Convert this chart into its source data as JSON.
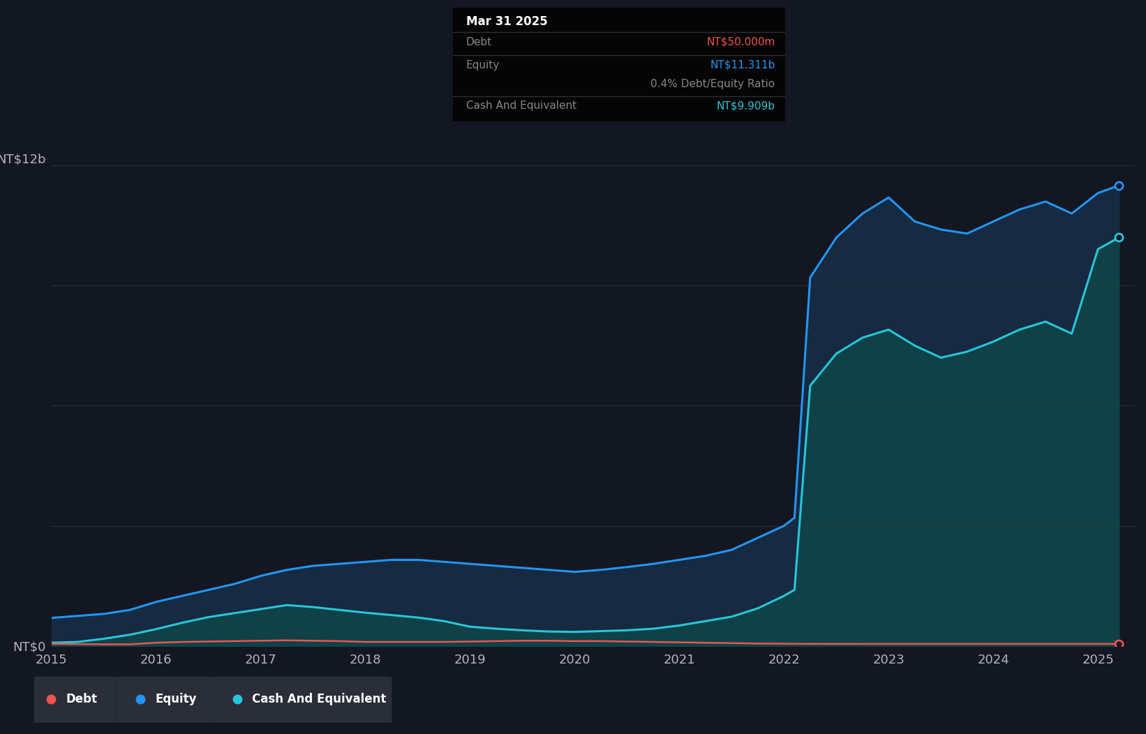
{
  "bg_color": "#131722",
  "plot_bg_color": "#131722",
  "legend_bg_color": "#2a2e39",
  "tooltip_bg_color": "#050505",
  "grid_color": "#2a2e39",
  "equity_color": "#2196F3",
  "debt_color": "#ef5350",
  "cash_color": "#26c6da",
  "equity_fill_color": "#1a3a5c",
  "cash_fill_color": "#0d4a4a",
  "ylim": [
    0,
    13200000000
  ],
  "ytick_labels": [
    "NT$0",
    "NT$12b"
  ],
  "xlabel_color": "#b2b5be",
  "ylabel_color": "#b2b5be",
  "tooltip_title": "Mar 31 2025",
  "tooltip_debt_label": "Debt",
  "tooltip_debt_value": "NT$50.000m",
  "tooltip_equity_label": "Equity",
  "tooltip_equity_value": "NT$11.311b",
  "tooltip_ratio": "0.4% Debt/Equity Ratio",
  "tooltip_cash_label": "Cash And Equivalent",
  "tooltip_cash_value": "NT$9.909b",
  "years": [
    2015.0,
    2015.25,
    2015.5,
    2015.75,
    2016.0,
    2016.25,
    2016.5,
    2016.75,
    2017.0,
    2017.25,
    2017.5,
    2017.75,
    2018.0,
    2018.25,
    2018.5,
    2018.75,
    2019.0,
    2019.25,
    2019.5,
    2019.75,
    2020.0,
    2020.25,
    2020.5,
    2020.75,
    2021.0,
    2021.25,
    2021.5,
    2021.75,
    2022.0,
    2022.1,
    2022.25,
    2022.5,
    2022.75,
    2023.0,
    2023.25,
    2023.5,
    2023.75,
    2024.0,
    2024.25,
    2024.5,
    2024.75,
    2025.0,
    2025.2
  ],
  "equity": [
    700000000,
    750000000,
    800000000,
    900000000,
    1100000000,
    1250000000,
    1400000000,
    1550000000,
    1750000000,
    1900000000,
    2000000000,
    2050000000,
    2100000000,
    2150000000,
    2150000000,
    2100000000,
    2050000000,
    2000000000,
    1950000000,
    1900000000,
    1850000000,
    1900000000,
    1970000000,
    2050000000,
    2150000000,
    2250000000,
    2400000000,
    2700000000,
    3000000000,
    3200000000,
    9200000000,
    10200000000,
    10800000000,
    11200000000,
    10600000000,
    10400000000,
    10300000000,
    10600000000,
    10900000000,
    11100000000,
    10800000000,
    11311000000,
    11500000000
  ],
  "cash": [
    80000000,
    100000000,
    180000000,
    280000000,
    420000000,
    580000000,
    720000000,
    820000000,
    920000000,
    1020000000,
    970000000,
    900000000,
    830000000,
    770000000,
    710000000,
    620000000,
    480000000,
    430000000,
    390000000,
    360000000,
    350000000,
    370000000,
    390000000,
    430000000,
    510000000,
    620000000,
    730000000,
    940000000,
    1250000000,
    1400000000,
    6500000000,
    7300000000,
    7700000000,
    7900000000,
    7500000000,
    7200000000,
    7350000000,
    7600000000,
    7900000000,
    8100000000,
    7800000000,
    9909000000,
    10200000000
  ],
  "debt": [
    50000000,
    45000000,
    40000000,
    40000000,
    80000000,
    100000000,
    110000000,
    120000000,
    130000000,
    140000000,
    130000000,
    120000000,
    100000000,
    100000000,
    100000000,
    100000000,
    110000000,
    120000000,
    130000000,
    130000000,
    120000000,
    120000000,
    110000000,
    100000000,
    90000000,
    80000000,
    70000000,
    60000000,
    55000000,
    53000000,
    52000000,
    51000000,
    50000000,
    50000000,
    50000000,
    50000000,
    50000000,
    50000000,
    50000000,
    50000000,
    50000000,
    50000000,
    50000000
  ]
}
